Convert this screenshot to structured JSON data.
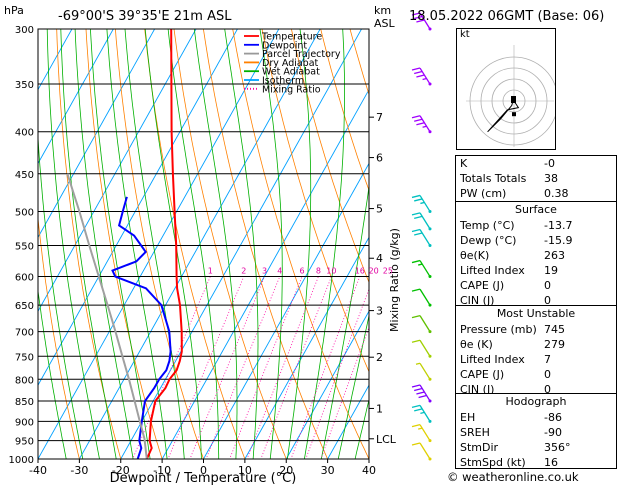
{
  "header": {
    "location": "-69°00'S  39°35'E  21m  ASL",
    "datetime": "18.05.2022  06GMT  (Base: 06)",
    "hpa_label": "hPa",
    "km_label": "km",
    "asl_label": "ASL"
  },
  "legend": [
    {
      "label": "Temperature",
      "color": "#ff0000",
      "style": "solid"
    },
    {
      "label": "Dewpoint",
      "color": "#0000ff",
      "style": "solid"
    },
    {
      "label": "Parcel Trajectory",
      "color": "#999999",
      "style": "solid"
    },
    {
      "label": "Dry Adiabat",
      "color": "#ff8000",
      "style": "solid"
    },
    {
      "label": "Wet Adiabat",
      "color": "#00b000",
      "style": "solid"
    },
    {
      "label": "Isotherm",
      "color": "#00a0ff",
      "style": "solid"
    },
    {
      "label": "Mixing Ratio",
      "color": "#ff00a0",
      "style": "dotted"
    }
  ],
  "chart_data": {
    "type": "line",
    "xlabel": "Dewpoint / Temperature (°C)",
    "ylabel": "hPa",
    "x_ticks": [
      "-40",
      "-30",
      "-20",
      "-10",
      "0",
      "10",
      "20",
      "30",
      "40"
    ],
    "pressure_levels": [
      "300",
      "350",
      "400",
      "450",
      "500",
      "550",
      "600",
      "650",
      "700",
      "750",
      "800",
      "850",
      "900",
      "950",
      "1000"
    ],
    "xlim": [
      -40,
      40
    ],
    "ylim": [
      1000,
      300
    ],
    "y_scale": "log",
    "skew": "skew-T",
    "km_ticks": [
      {
        "km": "7",
        "p": 384
      },
      {
        "km": "6",
        "p": 430
      },
      {
        "km": "5",
        "p": 496
      },
      {
        "km": "4",
        "p": 570
      },
      {
        "km": "3",
        "p": 660
      },
      {
        "km": "2",
        "p": 752
      },
      {
        "km": "1",
        "p": 868
      },
      {
        "km": "LCL",
        "p": 945
      }
    ],
    "mixing_ratio_label": "Mixing Ratio (g/kg)",
    "mixing_ratio_values": [
      "1",
      "2",
      "3",
      "4",
      "6",
      "8",
      "10",
      "16",
      "20",
      "25"
    ],
    "series": [
      {
        "name": "Temperature",
        "color": "#ff0000",
        "points": [
          [
            1000,
            -13.7
          ],
          [
            970,
            -14.0
          ],
          [
            950,
            -15.5
          ],
          [
            900,
            -17.8
          ],
          [
            850,
            -19.5
          ],
          [
            820,
            -18.8
          ],
          [
            800,
            -19.0
          ],
          [
            780,
            -18.5
          ],
          [
            760,
            -19.0
          ],
          [
            740,
            -19.8
          ],
          [
            700,
            -22.5
          ],
          [
            650,
            -26.5
          ],
          [
            620,
            -29.5
          ],
          [
            600,
            -31.2
          ],
          [
            550,
            -35.5
          ],
          [
            500,
            -40.5
          ],
          [
            450,
            -46.0
          ],
          [
            400,
            -52.0
          ],
          [
            350,
            -58.5
          ],
          [
            300,
            -66.0
          ]
        ]
      },
      {
        "name": "Dewpoint",
        "color": "#0000ff",
        "points": [
          [
            1000,
            -15.9
          ],
          [
            970,
            -16.5
          ],
          [
            950,
            -18.0
          ],
          [
            900,
            -20.0
          ],
          [
            850,
            -22.0
          ],
          [
            820,
            -21.5
          ],
          [
            800,
            -21.5
          ],
          [
            780,
            -21.0
          ],
          [
            760,
            -21.5
          ],
          [
            740,
            -22.5
          ],
          [
            700,
            -25.5
          ],
          [
            650,
            -31.0
          ],
          [
            620,
            -37.0
          ],
          [
            600,
            -46.0
          ],
          [
            590,
            -47.5
          ],
          [
            575,
            -43.0
          ],
          [
            560,
            -42.0
          ],
          [
            535,
            -47.0
          ],
          [
            520,
            -52.0
          ],
          [
            500,
            -53.0
          ],
          [
            480,
            -54.0
          ]
        ]
      },
      {
        "name": "Parcel Trajectory",
        "color": "#a0a0a0",
        "points": [
          [
            1000,
            -13.7
          ],
          [
            945,
            -17.0
          ],
          [
            900,
            -20.5
          ],
          [
            850,
            -24.5
          ],
          [
            800,
            -28.8
          ],
          [
            750,
            -33.5
          ],
          [
            700,
            -38.5
          ],
          [
            650,
            -44.0
          ],
          [
            600,
            -50.0
          ],
          [
            550,
            -56.5
          ],
          [
            500,
            -63.5
          ],
          [
            450,
            -71.5
          ]
        ]
      }
    ],
    "wind_barbs": [
      {
        "p": 300,
        "color": "#a000ff",
        "flags": 0,
        "full": 3,
        "half": 0
      },
      {
        "p": 350,
        "color": "#a000ff",
        "flags": 0,
        "full": 3,
        "half": 1
      },
      {
        "p": 400,
        "color": "#a000ff",
        "flags": 0,
        "full": 3,
        "half": 1
      },
      {
        "p": 500,
        "color": "#00c0c0",
        "flags": 0,
        "full": 2,
        "half": 1
      },
      {
        "p": 525,
        "color": "#00c0c0",
        "flags": 0,
        "full": 2,
        "half": 0
      },
      {
        "p": 550,
        "color": "#00c0c0",
        "flags": 0,
        "full": 2,
        "half": 0
      },
      {
        "p": 600,
        "color": "#00c000",
        "flags": 0,
        "full": 1,
        "half": 1
      },
      {
        "p": 650,
        "color": "#00c000",
        "flags": 0,
        "full": 1,
        "half": 0
      },
      {
        "p": 700,
        "color": "#60c000",
        "flags": 0,
        "full": 1,
        "half": 0
      },
      {
        "p": 750,
        "color": "#a0d000",
        "flags": 0,
        "full": 1,
        "half": 0
      },
      {
        "p": 800,
        "color": "#c0d000",
        "flags": 0,
        "full": 0,
        "half": 1
      },
      {
        "p": 850,
        "color": "#8000ff",
        "flags": 0,
        "full": 4,
        "half": 0
      },
      {
        "p": 900,
        "color": "#00c0c0",
        "flags": 0,
        "full": 2,
        "half": 1
      },
      {
        "p": 950,
        "color": "#e0d000",
        "flags": 0,
        "full": 1,
        "half": 1
      },
      {
        "p": 1000,
        "color": "#e0d000",
        "flags": 0,
        "full": 1,
        "half": 0
      }
    ],
    "hodograph": {
      "label": "kt",
      "rings": 4,
      "trace": [
        [
          0,
          0
        ],
        [
          2,
          -3
        ],
        [
          -3,
          -4
        ],
        [
          -12,
          -14
        ],
        [
          -6,
          -8
        ],
        [
          -1,
          -2
        ],
        [
          0,
          2
        ]
      ],
      "storm_motion": [
        0,
        -6
      ]
    }
  },
  "indices": {
    "top": [
      {
        "label": "K",
        "value": "-0"
      },
      {
        "label": "Totals Totals",
        "value": "38"
      },
      {
        "label": "PW (cm)",
        "value": "0.38"
      }
    ],
    "surface": {
      "title": "Surface",
      "rows": [
        {
          "label": "Temp (°C)",
          "value": "-13.7"
        },
        {
          "label": "Dewp (°C)",
          "value": "-15.9"
        },
        {
          "label": "θe(K)",
          "value": "263"
        },
        {
          "label": "Lifted Index",
          "value": "19"
        },
        {
          "label": "CAPE (J)",
          "value": "0"
        },
        {
          "label": "CIN (J)",
          "value": "0"
        }
      ]
    },
    "most_unstable": {
      "title": "Most Unstable",
      "rows": [
        {
          "label": "Pressure (mb)",
          "value": "745"
        },
        {
          "label": "θe (K)",
          "value": "279"
        },
        {
          "label": "Lifted Index",
          "value": "7"
        },
        {
          "label": "CAPE (J)",
          "value": "0"
        },
        {
          "label": "CIN (J)",
          "value": "0"
        }
      ]
    },
    "hodograph": {
      "title": "Hodograph",
      "rows": [
        {
          "label": "EH",
          "value": "-86"
        },
        {
          "label": "SREH",
          "value": "-90"
        },
        {
          "label": "StmDir",
          "value": "356°"
        },
        {
          "label": "StmSpd (kt)",
          "value": "16"
        }
      ]
    }
  },
  "footer": {
    "copyright": "© weatheronline.co.uk"
  }
}
